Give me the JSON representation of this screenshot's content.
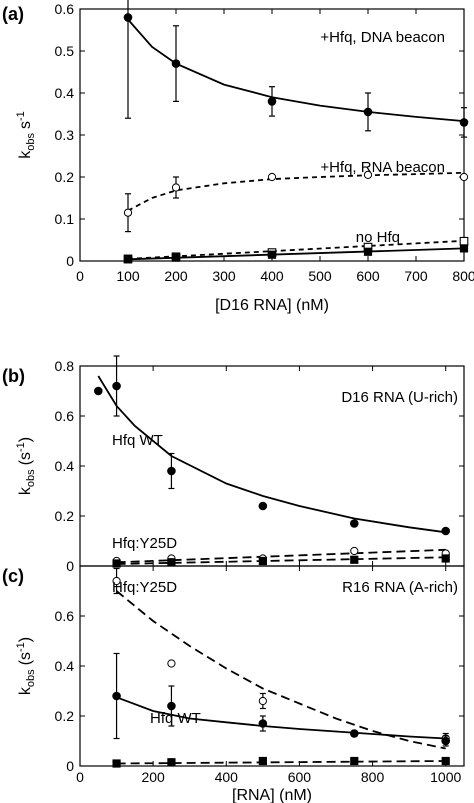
{
  "chart_data": [
    {
      "panel": "(a)",
      "type": "scatter",
      "xlabel": "[D16 RNA] (nM)",
      "ylabel": "k",
      "ylabel_sub": "obs",
      "ylabel_unit": "s",
      "ylabel_sup": "-1",
      "xlim": [
        0,
        800
      ],
      "ylim": [
        0,
        0.6
      ],
      "xticks": [
        "0",
        "100",
        "200",
        "300",
        "400",
        "500",
        "600",
        "700",
        "800"
      ],
      "yticks": [
        "0",
        "0.1",
        "0.2",
        "0.3",
        "0.4",
        "0.5",
        "0.6"
      ],
      "series": [
        {
          "name": "+Hfq, DNA beacon",
          "marker": "filled-circle",
          "line": "solid",
          "x": [
            100,
            200,
            400,
            600,
            800
          ],
          "y": [
            0.58,
            0.47,
            0.38,
            0.355,
            0.33
          ],
          "err": [
            0.24,
            0.09,
            0.035,
            0.045,
            0.035
          ],
          "fit": [
            [
              100,
              0.575
            ],
            [
              150,
              0.51
            ],
            [
              200,
              0.47
            ],
            [
              300,
              0.42
            ],
            [
              400,
              0.39
            ],
            [
              500,
              0.37
            ],
            [
              600,
              0.355
            ],
            [
              700,
              0.343
            ],
            [
              800,
              0.333
            ]
          ]
        },
        {
          "name": "+Hfq, RNA beacon",
          "marker": "open-circle",
          "line": "dashed",
          "x": [
            100,
            200,
            400,
            600,
            800
          ],
          "y": [
            0.115,
            0.175,
            0.2,
            0.205,
            0.2
          ],
          "err": [
            0.045,
            0.025,
            0.005,
            0.005,
            0.005
          ],
          "fit": [
            [
              100,
              0.12
            ],
            [
              150,
              0.15
            ],
            [
              200,
              0.168
            ],
            [
              300,
              0.185
            ],
            [
              400,
              0.195
            ],
            [
              500,
              0.2
            ],
            [
              600,
              0.204
            ],
            [
              700,
              0.207
            ],
            [
              800,
              0.21
            ]
          ]
        },
        {
          "name": "no Hfq",
          "marker": "open-square",
          "line": "dashed",
          "x": [
            100,
            200,
            400,
            600,
            800
          ],
          "y": [
            0.005,
            0.01,
            0.02,
            0.033,
            0.047
          ],
          "err": [
            0,
            0,
            0,
            0,
            0
          ],
          "fit": [
            [
              100,
              0.005
            ],
            [
              800,
              0.048
            ]
          ]
        },
        {
          "name": "",
          "marker": "filled-square",
          "line": "solid",
          "x": [
            100,
            200,
            400,
            600,
            800
          ],
          "y": [
            0.004,
            0.008,
            0.015,
            0.022,
            0.03
          ],
          "err": [
            0,
            0,
            0,
            0,
            0
          ],
          "fit": [
            [
              100,
              0.004
            ],
            [
              800,
              0.03
            ]
          ]
        }
      ],
      "annotations": [
        "+Hfq, DNA beacon",
        "+Hfq, RNA beacon",
        "no Hfq"
      ]
    },
    {
      "panel": "(b)",
      "type": "scatter",
      "xlabel": "",
      "ylabel": "k",
      "ylabel_sub": "obs",
      "ylabel_unit": "(s",
      "ylabel_sup": "-1",
      "ylabel_close": ")",
      "xlim": [
        0,
        1050
      ],
      "ylim": [
        0,
        0.8
      ],
      "yticks": [
        "0",
        "0.2",
        "0.4",
        "0.6",
        "0.8"
      ],
      "series": [
        {
          "name": "Hfq WT",
          "marker": "filled-circle",
          "line": "solid",
          "x": [
            50,
            100,
            250,
            500,
            750,
            1000
          ],
          "y": [
            0.7,
            0.72,
            0.38,
            0.24,
            0.17,
            0.14
          ],
          "err": [
            0,
            0.12,
            0.07,
            0,
            0.01,
            0
          ],
          "fit": [
            [
              50,
              0.76
            ],
            [
              100,
              0.64
            ],
            [
              150,
              0.56
            ],
            [
              250,
              0.44
            ],
            [
              400,
              0.33
            ],
            [
              500,
              0.28
            ],
            [
              600,
              0.24
            ],
            [
              750,
              0.19
            ],
            [
              900,
              0.155
            ],
            [
              1000,
              0.135
            ]
          ]
        },
        {
          "name": "Hfq:Y25D",
          "marker": "open-circle",
          "line": "dashed",
          "x": [
            100,
            250,
            500,
            750,
            1000
          ],
          "y": [
            0.02,
            0.03,
            0.03,
            0.06,
            0.05
          ],
          "err": [
            0,
            0,
            0,
            0,
            0
          ],
          "fit": [
            [
              100,
              0.015
            ],
            [
              1000,
              0.065
            ]
          ]
        },
        {
          "name": "",
          "marker": "filled-square",
          "line": "dashed",
          "x": [
            100,
            250,
            500,
            750,
            1000
          ],
          "y": [
            0.01,
            0.015,
            0.02,
            0.025,
            0.03
          ],
          "err": [
            0,
            0,
            0,
            0,
            0
          ],
          "fit": [
            [
              100,
              0.008
            ],
            [
              1000,
              0.035
            ]
          ]
        }
      ],
      "annotations": [
        "D16 RNA (U-rich)",
        "Hfq WT",
        "Hfq:Y25D"
      ]
    },
    {
      "panel": "(c)",
      "type": "scatter",
      "xlabel": "[RNA] (nM)",
      "ylabel": "k",
      "ylabel_sub": "obs",
      "ylabel_unit": "(s",
      "ylabel_sup": "-1",
      "ylabel_close": ")",
      "xlim": [
        0,
        1050
      ],
      "ylim": [
        0,
        0.8
      ],
      "xticks": [
        "0",
        "200",
        "400",
        "600",
        "800",
        "1000"
      ],
      "yticks": [
        "0",
        "0.2",
        "0.4",
        "0.6"
      ],
      "series": [
        {
          "name": "Hfq:Y25D",
          "marker": "open-circle",
          "line": "dashed",
          "x": [
            100,
            250,
            500,
            750,
            1000
          ],
          "y": [
            0.74,
            0.41,
            0.26,
            0.13,
            0.11
          ],
          "err": [
            0.05,
            0,
            0.03,
            0.01,
            0.02
          ],
          "fit": [
            [
              100,
              0.7
            ],
            [
              200,
              0.58
            ],
            [
              300,
              0.48
            ],
            [
              400,
              0.39
            ],
            [
              500,
              0.31
            ],
            [
              600,
              0.25
            ],
            [
              700,
              0.19
            ],
            [
              800,
              0.14
            ],
            [
              900,
              0.1
            ],
            [
              1000,
              0.07
            ]
          ]
        },
        {
          "name": "Hfq WT",
          "marker": "filled-circle",
          "line": "solid",
          "x": [
            100,
            250,
            500,
            750,
            1000
          ],
          "y": [
            0.28,
            0.24,
            0.17,
            0.13,
            0.1
          ],
          "err": [
            0.17,
            0.08,
            0.03,
            0.01,
            0.02
          ],
          "fit": [
            [
              100,
              0.275
            ],
            [
              200,
              0.22
            ],
            [
              300,
              0.19
            ],
            [
              400,
              0.175
            ],
            [
              500,
              0.16
            ],
            [
              600,
              0.148
            ],
            [
              700,
              0.138
            ],
            [
              800,
              0.128
            ],
            [
              900,
              0.118
            ],
            [
              1000,
              0.11
            ]
          ]
        },
        {
          "name": "",
          "marker": "filled-square",
          "line": "dashed",
          "x": [
            100,
            250,
            500,
            750,
            1000
          ],
          "y": [
            0.01,
            0.015,
            0.02,
            0.02,
            0.02
          ],
          "err": [
            0,
            0,
            0,
            0,
            0
          ],
          "fit": [
            [
              100,
              0.01
            ],
            [
              1000,
              0.02
            ]
          ]
        }
      ],
      "annotations": [
        "Hfq:Y25D",
        "R16 RNA (A-rich)",
        "Hfq WT"
      ]
    }
  ]
}
